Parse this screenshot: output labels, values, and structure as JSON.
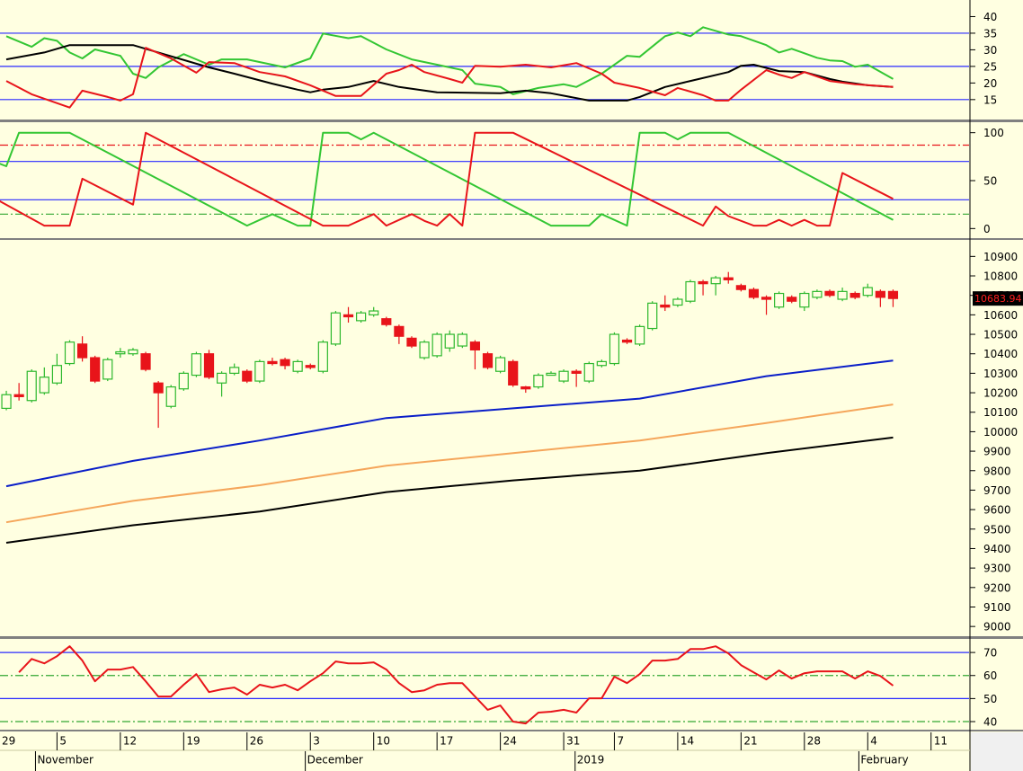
{
  "chart_data": [
    {
      "type": "line",
      "xlim": [
        0.5,
        77
      ],
      "ylim": [
        9,
        45
      ],
      "yticks": [
        15,
        20,
        25,
        30,
        35,
        40
      ],
      "hlines": [
        {
          "value": 35,
          "color": "#2a2aff",
          "style": "solid"
        },
        {
          "value": 25,
          "color": "#2a2aff",
          "style": "solid"
        },
        {
          "value": 15,
          "color": "#2a2aff",
          "style": "solid"
        }
      ],
      "series": [
        {
          "color": "#33c633",
          "x": [
            1,
            3,
            4,
            5,
            6,
            7,
            8,
            10,
            11,
            12,
            13,
            15,
            17,
            18,
            20,
            23,
            25,
            26,
            28,
            29,
            31,
            33,
            35,
            37,
            38,
            40,
            41,
            43,
            45,
            46,
            48,
            50,
            51,
            53,
            54,
            55,
            56,
            58,
            59,
            61,
            62,
            63,
            65,
            66,
            67,
            68,
            69,
            71
          ],
          "values": [
            34.1,
            30.9,
            33.5,
            32.7,
            29.2,
            27.4,
            30.1,
            28.2,
            22.8,
            21.5,
            24.7,
            28.7,
            25.5,
            27.1,
            27.1,
            24.7,
            27.4,
            34.9,
            33.5,
            34.1,
            30.1,
            27.1,
            25.5,
            23.9,
            19.8,
            18.8,
            16.6,
            18.5,
            19.6,
            18.8,
            22.8,
            28.2,
            27.9,
            34.1,
            35.2,
            34.1,
            36.8,
            34.6,
            34.1,
            31.4,
            29.2,
            30.3,
            27.6,
            26.8,
            26.6,
            24.9,
            25.5,
            21.2
          ]
        },
        {
          "color": "#000000",
          "x": [
            1,
            4,
            6,
            11,
            13,
            17,
            19,
            22,
            24,
            25,
            26,
            28,
            30,
            32,
            35,
            40,
            42,
            44,
            47,
            50,
            51,
            53,
            55,
            58,
            59,
            60,
            62,
            64,
            66,
            67,
            69,
            71
          ],
          "values": [
            27.1,
            29.2,
            31.4,
            31.4,
            29.2,
            24.7,
            22.8,
            19.8,
            18.0,
            17.2,
            18.0,
            18.8,
            20.6,
            18.8,
            17.2,
            16.9,
            17.7,
            16.9,
            14.7,
            14.7,
            15.8,
            18.8,
            20.6,
            23.3,
            25.2,
            25.5,
            23.6,
            23.3,
            21.2,
            20.4,
            19.3,
            18.8
          ]
        },
        {
          "color": "#e8141a",
          "x": [
            1,
            3,
            6,
            7,
            9,
            10,
            11,
            12,
            14,
            16,
            17,
            19,
            21,
            23,
            25,
            27,
            29,
            31,
            32,
            33,
            34,
            36,
            37,
            38,
            40,
            42,
            44,
            46,
            48,
            49,
            51,
            53,
            54,
            56,
            57,
            58,
            59,
            61,
            62,
            63,
            64,
            66,
            68,
            71
          ],
          "values": [
            20.6,
            16.6,
            12.6,
            17.7,
            15.8,
            14.7,
            16.6,
            30.6,
            27.4,
            23.1,
            26.3,
            26.0,
            23.3,
            22.0,
            19.3,
            16.1,
            16.1,
            22.8,
            23.9,
            25.5,
            23.3,
            21.2,
            20.1,
            25.2,
            24.9,
            25.5,
            24.7,
            26.0,
            22.8,
            20.1,
            18.5,
            16.3,
            18.5,
            16.3,
            14.7,
            14.7,
            18.0,
            23.9,
            22.5,
            21.5,
            23.3,
            20.6,
            19.6,
            18.8
          ]
        }
      ]
    },
    {
      "type": "line",
      "xlim": [
        0.5,
        77
      ],
      "ylim": [
        -10,
        110
      ],
      "yticks": [
        0,
        50,
        100
      ],
      "hlines": [
        {
          "value": 70,
          "color": "#2a2aff",
          "style": "solid"
        },
        {
          "value": 30,
          "color": "#2a2aff",
          "style": "solid"
        },
        {
          "value": 87,
          "color": "#e8141a",
          "style": "dashdot"
        },
        {
          "value": 15,
          "color": "#33a833",
          "style": "dashdot"
        }
      ],
      "series": [
        {
          "color": "#33c633",
          "x": [
            0,
            1,
            2,
            6,
            20,
            22,
            24,
            25,
            26,
            28,
            29,
            30,
            44,
            47,
            48,
            50,
            51,
            53,
            54,
            55,
            58,
            71
          ],
          "values": [
            70,
            65,
            100,
            100,
            3,
            15,
            3,
            3,
            100,
            100,
            93,
            100,
            3,
            3,
            15,
            3,
            100,
            100,
            93,
            100,
            100,
            9
          ]
        },
        {
          "color": "#e8141a",
          "x": [
            0,
            4,
            6,
            7,
            11,
            12,
            26,
            28,
            30,
            31,
            33,
            34,
            35,
            36,
            37,
            38,
            41,
            56,
            57,
            58,
            60,
            61,
            62,
            63,
            64,
            65,
            66,
            67,
            71
          ],
          "values": [
            32,
            3,
            3,
            52,
            25,
            100,
            3,
            3,
            15,
            3,
            15,
            8,
            3,
            15,
            3,
            100,
            100,
            3,
            23,
            13,
            3,
            3,
            9,
            3,
            9,
            3,
            3,
            58,
            31
          ]
        }
      ]
    },
    {
      "type": "candlestick",
      "xlim": [
        0.5,
        77
      ],
      "ylim": [
        8950,
        10980
      ],
      "yticks": [
        9000,
        9100,
        9200,
        9300,
        9400,
        9500,
        9600,
        9700,
        9800,
        9900,
        10000,
        10100,
        10200,
        10300,
        10400,
        10500,
        10600,
        10700,
        10800,
        10900
      ],
      "up_color": "#2db82d",
      "down_color": "#e8141a",
      "x": [
        1,
        2,
        3,
        4,
        5,
        6,
        7,
        8,
        9,
        10,
        11,
        12,
        13,
        14,
        15,
        16,
        17,
        18,
        19,
        20,
        21,
        22,
        23,
        24,
        25,
        26,
        27,
        28,
        29,
        30,
        31,
        32,
        33,
        34,
        35,
        36,
        37,
        38,
        39,
        40,
        41,
        42,
        43,
        44,
        45,
        46,
        47,
        48,
        49,
        50,
        51,
        52,
        53,
        54,
        55,
        56,
        57,
        58,
        59,
        60,
        61,
        62,
        63,
        64,
        65,
        66,
        67,
        68,
        69,
        70,
        71
      ],
      "open": [
        10120,
        10190,
        10160,
        10200,
        10250,
        10350,
        10450,
        10380,
        10270,
        10400,
        10400,
        10400,
        10250,
        10130,
        10220,
        10290,
        10400,
        10250,
        10300,
        10310,
        10260,
        10360,
        10370,
        10310,
        10340,
        10310,
        10450,
        10600,
        10570,
        10600,
        10580,
        10540,
        10480,
        10380,
        10390,
        10430,
        10440,
        10460,
        10400,
        10310,
        10360,
        10230,
        10230,
        10290,
        10260,
        10310,
        10260,
        10340,
        10350,
        10470,
        10450,
        10530,
        10650,
        10650,
        10670,
        10770,
        10760,
        10790,
        10750,
        10730,
        10690,
        10640,
        10690,
        10640,
        10690,
        10720,
        10680,
        10710,
        10700,
        10720,
        10720
      ],
      "high": [
        10210,
        10250,
        10320,
        10330,
        10400,
        10470,
        10490,
        10390,
        10380,
        10430,
        10430,
        10410,
        10260,
        10240,
        10310,
        10410,
        10420,
        10310,
        10350,
        10320,
        10370,
        10380,
        10380,
        10370,
        10350,
        10470,
        10620,
        10640,
        10620,
        10640,
        10590,
        10550,
        10490,
        10470,
        10510,
        10520,
        10510,
        10470,
        10410,
        10390,
        10370,
        10235,
        10300,
        10310,
        10320,
        10320,
        10360,
        10370,
        10510,
        10480,
        10550,
        10670,
        10700,
        10690,
        10780,
        10780,
        10800,
        10820,
        10760,
        10740,
        10700,
        10720,
        10700,
        10720,
        10730,
        10730,
        10740,
        10720,
        10760,
        10730,
        10730
      ],
      "low": [
        10110,
        10160,
        10150,
        10190,
        10240,
        10340,
        10360,
        10250,
        10260,
        10380,
        10390,
        10310,
        10020,
        10120,
        10210,
        10280,
        10270,
        10180,
        10290,
        10250,
        10250,
        10340,
        10320,
        10300,
        10320,
        10300,
        10440,
        10560,
        10560,
        10590,
        10540,
        10450,
        10430,
        10370,
        10380,
        10410,
        10430,
        10320,
        10320,
        10300,
        10230,
        10200,
        10220,
        10290,
        10250,
        10230,
        10250,
        10330,
        10340,
        10450,
        10440,
        10520,
        10620,
        10640,
        10660,
        10700,
        10700,
        10760,
        10720,
        10680,
        10600,
        10630,
        10660,
        10620,
        10680,
        10690,
        10670,
        10680,
        10690,
        10640,
        10640
      ],
      "close": [
        10190,
        10180,
        10310,
        10280,
        10340,
        10460,
        10380,
        10260,
        10370,
        10410,
        10420,
        10320,
        10200,
        10230,
        10300,
        10400,
        10280,
        10300,
        10330,
        10260,
        10360,
        10350,
        10340,
        10360,
        10330,
        10460,
        10610,
        10590,
        10610,
        10620,
        10550,
        10490,
        10440,
        10460,
        10500,
        10500,
        10500,
        10420,
        10330,
        10380,
        10240,
        10220,
        10290,
        10300,
        10310,
        10300,
        10350,
        10360,
        10500,
        10460,
        10540,
        10660,
        10640,
        10680,
        10770,
        10760,
        10790,
        10780,
        10730,
        10690,
        10680,
        10710,
        10670,
        10710,
        10720,
        10700,
        10720,
        10690,
        10740,
        10690,
        10683.94
      ],
      "series": [
        {
          "color": "#0a1ec8",
          "x": [
            1,
            11,
            21,
            31,
            41,
            51,
            61,
            71
          ],
          "values": [
            9720,
            9850,
            9955,
            10070,
            10120,
            10170,
            10285,
            10365
          ]
        },
        {
          "color": "#f5a65b",
          "x": [
            1,
            11,
            21,
            31,
            41,
            51,
            61,
            71
          ],
          "values": [
            9535,
            9645,
            9725,
            9825,
            9890,
            9955,
            10045,
            10140
          ]
        },
        {
          "color": "#000000",
          "x": [
            1,
            11,
            21,
            31,
            41,
            51,
            61,
            71
          ],
          "values": [
            9430,
            9520,
            9590,
            9690,
            9750,
            9800,
            9890,
            9970
          ]
        }
      ]
    },
    {
      "type": "line",
      "xlim": [
        0.5,
        77
      ],
      "ylim": [
        36.5,
        75.5
      ],
      "yticks": [
        40,
        50,
        60,
        70
      ],
      "hlines": [
        {
          "value": 70,
          "color": "#2a2aff",
          "style": "solid"
        },
        {
          "value": 50,
          "color": "#2a2aff",
          "style": "solid"
        },
        {
          "value": 60,
          "color": "#33a833",
          "style": "dashdot"
        },
        {
          "value": 40,
          "color": "#33a833",
          "style": "dashdot"
        }
      ],
      "series": [
        {
          "color": "#e8141a",
          "x": [
            2,
            3,
            4,
            5,
            6,
            7,
            8,
            9,
            10,
            11,
            12,
            13,
            14,
            15,
            16,
            17,
            18,
            19,
            20,
            21,
            22,
            23,
            24,
            25,
            26,
            27,
            28,
            29,
            30,
            31,
            32,
            33,
            34,
            35,
            36,
            37,
            38,
            39,
            40,
            41,
            42,
            43,
            44,
            45,
            46,
            47,
            48,
            49,
            50,
            51,
            52,
            53,
            54,
            55,
            56,
            57,
            58,
            59,
            60,
            61,
            62,
            63,
            64,
            65,
            66,
            67,
            68,
            69,
            70,
            71
          ],
          "values": [
            61.4,
            67.2,
            65.3,
            68.4,
            72.7,
            66.5,
            57.5,
            62.6,
            62.6,
            63.7,
            57.5,
            50.9,
            50.9,
            56.0,
            60.6,
            52.8,
            54.0,
            54.8,
            51.7,
            56.0,
            54.8,
            56.0,
            53.6,
            57.5,
            61.0,
            66.1,
            65.3,
            65.3,
            65.7,
            62.6,
            56.7,
            52.8,
            53.6,
            56.0,
            56.7,
            56.7,
            50.9,
            45.1,
            47.0,
            40.0,
            39.2,
            43.9,
            44.3,
            45.1,
            43.9,
            50.1,
            50.1,
            59.5,
            56.7,
            60.6,
            66.5,
            66.5,
            67.2,
            71.5,
            71.5,
            72.7,
            69.6,
            64.5,
            61.4,
            58.3,
            62.2,
            58.7,
            61.0,
            61.8,
            61.8,
            61.8,
            58.7,
            61.8,
            59.8,
            55.6
          ]
        }
      ],
      "xticks": [
        {
          "value": 0,
          "label": "29"
        },
        {
          "value": 5,
          "label": "5"
        },
        {
          "value": 10,
          "label": "12"
        },
        {
          "value": 15,
          "label": "19"
        },
        {
          "value": 20,
          "label": "26"
        },
        {
          "value": 25,
          "label": "3"
        },
        {
          "value": 30,
          "label": "10"
        },
        {
          "value": 35,
          "label": "17"
        },
        {
          "value": 40,
          "label": "24"
        },
        {
          "value": 45,
          "label": "31"
        },
        {
          "value": 49,
          "label": "7"
        },
        {
          "value": 54,
          "label": "14"
        },
        {
          "value": 59,
          "label": "21"
        },
        {
          "value": 64,
          "label": "28"
        },
        {
          "value": 69,
          "label": "4"
        },
        {
          "value": 74,
          "label": "11"
        }
      ],
      "month_ticks": [
        {
          "value": 3.3,
          "label": "November"
        },
        {
          "value": 24.6,
          "label": "December"
        },
        {
          "value": 45.9,
          "label": "2019"
        },
        {
          "value": 68.3,
          "label": "February"
        }
      ]
    }
  ]
}
